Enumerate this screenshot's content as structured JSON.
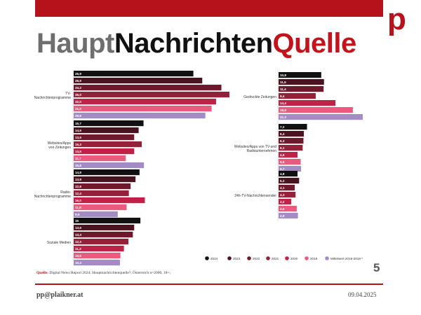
{
  "header": {
    "title_part1": "Haupt",
    "title_part2": "Nachrichten",
    "title_part3": "Quelle",
    "logo": "p"
  },
  "colors": {
    "brand": "#b5121b",
    "series": [
      "#111111",
      "#4a1320",
      "#6f1a2c",
      "#95203a",
      "#c02146",
      "#ea5a7f",
      "#a38cc4"
    ]
  },
  "chart_data": {
    "type": "bar",
    "orientation": "horizontal",
    "series_names": [
      "2024",
      "2023",
      "2022",
      "2021",
      "2020",
      "2019",
      "Mittelwert 2016-2018 *"
    ],
    "panels": [
      {
        "xmax": 41,
        "groups": [
          {
            "label": "TV-Nachrichtenprogramme",
            "values": [
              26.9,
              28.9,
              33.2,
              35.0,
              32.0,
              31.0,
              29.6
            ],
            "value_labels": [
              "26,9",
              "28,9",
              "33,2",
              "35,0",
              "32,0",
              "31,0",
              "29,6"
            ]
          },
          {
            "label": "Websites/Apps von Zeitungen",
            "values": [
              15.7,
              14.6,
              13.6,
              15.3,
              13.6,
              11.7,
              15.8
            ],
            "value_labels": [
              "15,7",
              "14,6",
              "13,6",
              "15,3",
              "13,6",
              "11,7",
              "15,8"
            ]
          },
          {
            "label": "Radio-Nachrichtenprogramme",
            "values": [
              14.8,
              13.9,
              12.8,
              12.4,
              16.0,
              11.9,
              9.9
            ],
            "value_labels": [
              "14,8",
              "13,9",
              "12,8",
              "12,4",
              "16,0",
              "11,9",
              "9,9"
            ]
          },
          {
            "label": "Soziale Medien",
            "values": [
              15,
              13.6,
              13.3,
              12.3,
              11.3,
              10.5,
              10.4
            ],
            "value_labels": [
              "15",
              "13,6",
              "13,3",
              "12,3",
              "11,3",
              "10,5",
              "10,4"
            ]
          }
        ]
      },
      {
        "xmax": 24.5,
        "groups": [
          {
            "label": "Gedruckte Zeitungen",
            "values": [
              10.8,
              11.5,
              11.4,
              9.4,
              14.4,
              18.8,
              21.3
            ],
            "value_labels": [
              "10,8",
              "11,5",
              "11,4",
              "9,4",
              "14,4",
              "18,8",
              "21,3"
            ]
          },
          {
            "label": "Websites/Apps von TV- und Radiounternehmen",
            "values": [
              7.2,
              6.4,
              6.3,
              6.1,
              4.8,
              5.6,
              5.7
            ],
            "value_labels": [
              "7,2",
              "6,4",
              "6,3",
              "6,1",
              "4,8",
              "5,6",
              "5,7"
            ]
          },
          {
            "label": "24h-TV-Nachrichtensender",
            "values": [
              4.8,
              5.2,
              4.1,
              4.3,
              3.2,
              4.6,
              4.9
            ],
            "value_labels": [
              "4,8",
              "5,2",
              "4,1",
              "4,3",
              "3,2",
              "4,6",
              "4,9"
            ]
          }
        ]
      }
    ]
  },
  "source": {
    "label": "Quelle:",
    "text": "Digital News Report 2024; Hauptnachrichtenquelle?; Österreich n=2000, 18+;"
  },
  "page_number": "5",
  "footer": {
    "email": "pp@plaikner.at",
    "date": "09.04.2025"
  }
}
